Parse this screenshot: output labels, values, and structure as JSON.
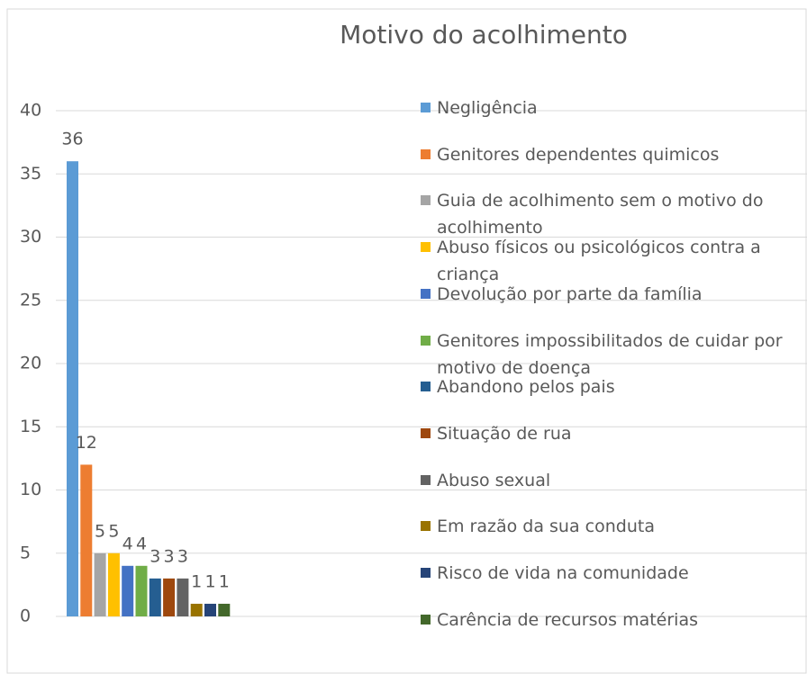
{
  "chart_data": {
    "type": "bar",
    "title": "Motivo do acolhimento",
    "series": [
      {
        "name": "Negligência",
        "color": "#5b9bd5",
        "values": [
          36
        ]
      },
      {
        "name": "Genitores dependentes quimicos",
        "color": "#ed7d31",
        "values": [
          12
        ]
      },
      {
        "name": "Guia de acolhimento sem o motivo do acolhimento",
        "color": "#a5a5a5",
        "values": [
          5
        ]
      },
      {
        "name": "Abuso físicos ou psicológicos contra a criança",
        "color": "#ffc000",
        "values": [
          5
        ]
      },
      {
        "name": "Devolução por parte da família",
        "color": "#4472c4",
        "values": [
          4
        ]
      },
      {
        "name": "Genitores impossibilitados de cuidar por motivo de doença",
        "color": "#70ad47",
        "values": [
          4
        ]
      },
      {
        "name": "Abandono pelos pais",
        "color": "#255e91",
        "values": [
          3
        ]
      },
      {
        "name": "Situação de rua",
        "color": "#9e480e",
        "values": [
          3
        ]
      },
      {
        "name": "Abuso sexual",
        "color": "#636363",
        "values": [
          3
        ]
      },
      {
        "name": "Em razão da sua conduta",
        "color": "#997300",
        "values": [
          1
        ]
      },
      {
        "name": "Risco de vida na comunidade",
        "color": "#264478",
        "values": [
          1
        ]
      },
      {
        "name": "Carência de recursos matérias",
        "color": "#43682b",
        "values": [
          1
        ]
      }
    ],
    "ylim": [
      0,
      40
    ],
    "yticks": [
      0,
      5,
      10,
      15,
      20,
      25,
      30,
      35,
      40
    ],
    "grid": true,
    "legend": "right"
  }
}
